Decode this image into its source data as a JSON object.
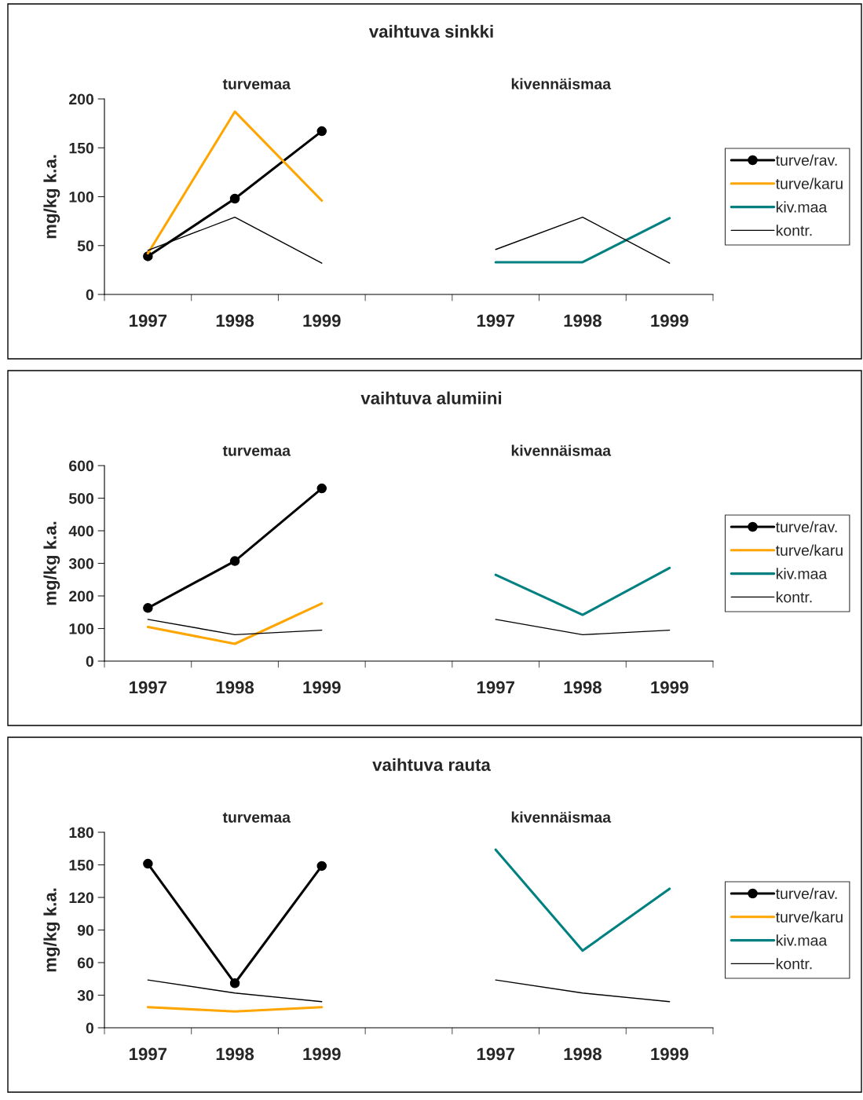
{
  "chart_data": [
    {
      "type": "line",
      "title": "vaihtuva sinkki",
      "ylabel": "mg/kg k.a.",
      "annotations": [
        "turvemaa",
        "kivennäismaa"
      ],
      "categories": [
        "1997",
        "1998",
        "1999",
        null,
        "1997",
        "1998",
        "1999"
      ],
      "ylim": [
        0,
        200
      ],
      "yticks": [
        0,
        50,
        100,
        150,
        200
      ],
      "grid": false,
      "legend": "right",
      "series": [
        {
          "name": "turve/rav.",
          "color": "#000000",
          "marker": "circle",
          "values": [
            39,
            98,
            167,
            null,
            null,
            null,
            null
          ]
        },
        {
          "name": "turve/karu",
          "color": "#ffa500",
          "marker": "none",
          "values": [
            42,
            187,
            96,
            null,
            null,
            null,
            null
          ]
        },
        {
          "name": "kiv.maa",
          "color": "#008080",
          "marker": "none",
          "values": [
            null,
            null,
            null,
            null,
            33,
            33,
            78
          ]
        },
        {
          "name": "kontr.",
          "color": "#000000",
          "marker": "none",
          "values": [
            45,
            79,
            32,
            null,
            46,
            79,
            32
          ]
        }
      ]
    },
    {
      "type": "line",
      "title": "vaihtuva alumiini",
      "ylabel": "mg/kg k.a.",
      "annotations": [
        "turvemaa",
        "kivennäismaa"
      ],
      "categories": [
        "1997",
        "1998",
        "1999",
        null,
        "1997",
        "1998",
        "1999"
      ],
      "ylim": [
        0,
        600
      ],
      "yticks": [
        0,
        100,
        200,
        300,
        400,
        500,
        600
      ],
      "grid": false,
      "legend": "right",
      "series": [
        {
          "name": "turve/rav.",
          "color": "#000000",
          "marker": "circle",
          "values": [
            163,
            307,
            530,
            null,
            null,
            null,
            null
          ]
        },
        {
          "name": "turve/karu",
          "color": "#ffa500",
          "marker": "none",
          "values": [
            105,
            53,
            177,
            null,
            null,
            null,
            null
          ]
        },
        {
          "name": "kiv.maa",
          "color": "#008080",
          "marker": "none",
          "values": [
            null,
            null,
            null,
            null,
            265,
            142,
            286
          ]
        },
        {
          "name": "kontr.",
          "color": "#000000",
          "marker": "none",
          "values": [
            128,
            81,
            95,
            null,
            128,
            81,
            95
          ]
        }
      ]
    },
    {
      "type": "line",
      "title": "vaihtuva rauta",
      "ylabel": "mg/kg k.a.",
      "annotations": [
        "turvemaa",
        "kivennäismaa"
      ],
      "categories": [
        "1997",
        "1998",
        "1999",
        null,
        "1997",
        "1998",
        "1999"
      ],
      "ylim": [
        0,
        180
      ],
      "yticks": [
        0,
        30,
        60,
        90,
        120,
        150,
        180
      ],
      "grid": false,
      "legend": "right",
      "series": [
        {
          "name": "turve/rav.",
          "color": "#000000",
          "marker": "circle",
          "values": [
            151,
            41,
            149,
            null,
            null,
            null,
            null
          ]
        },
        {
          "name": "turve/karu",
          "color": "#ffa500",
          "marker": "none",
          "values": [
            19,
            15,
            19,
            null,
            null,
            null,
            null
          ]
        },
        {
          "name": "kiv.maa",
          "color": "#008080",
          "marker": "none",
          "values": [
            null,
            null,
            null,
            null,
            164,
            71,
            128
          ]
        },
        {
          "name": "kontr.",
          "color": "#000000",
          "marker": "none",
          "values": [
            44,
            32,
            24,
            null,
            44,
            32,
            24
          ]
        }
      ]
    }
  ]
}
